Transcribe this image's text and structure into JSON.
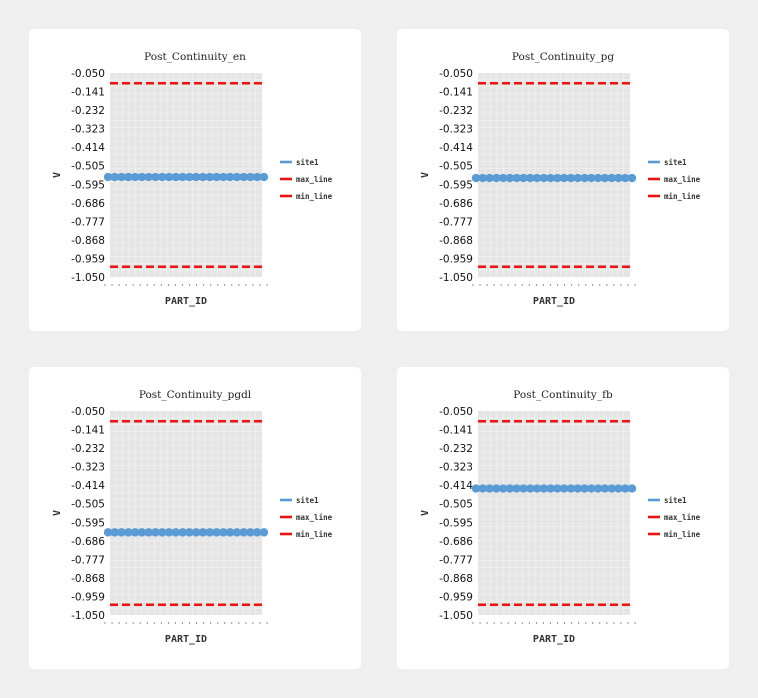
{
  "colors": {
    "page_bg": "#efefef",
    "card_bg": "#ffffff",
    "plot_bg": "#e5e5e5",
    "grid": "#f4f4f4",
    "site1": "#5b9bd5",
    "max_line": "#ee1111",
    "min_line": "#ee1111"
  },
  "chart_data": [
    {
      "type": "line",
      "title": "Post_Continuity_en",
      "xlabel": "PART_ID",
      "ylabel": "V",
      "ylim": [
        -1.05,
        -0.05
      ],
      "y_ticks": [
        "-0.050",
        "-0.141",
        "-0.232",
        "-0.323",
        "-0.414",
        "-0.505",
        "-0.595",
        "-0.686",
        "-0.777",
        "-0.868",
        "-0.959",
        "-1.050"
      ],
      "grid": true,
      "legend_position": "right",
      "series": [
        {
          "name": "site1",
          "values": [
            -0.56,
            -0.56,
            -0.56,
            -0.56,
            -0.56,
            -0.56,
            -0.56,
            -0.56,
            -0.56,
            -0.56,
            -0.56,
            -0.56,
            -0.56,
            -0.56,
            -0.56,
            -0.56,
            -0.56,
            -0.56,
            -0.56,
            -0.56,
            -0.56,
            -0.56,
            -0.56,
            -0.56
          ],
          "style": "point"
        },
        {
          "name": "max_line",
          "values": [
            -0.1,
            -0.1
          ],
          "style": "dashed"
        },
        {
          "name": "min_line",
          "values": [
            -1.0,
            -1.0
          ],
          "style": "dashed"
        }
      ]
    },
    {
      "type": "line",
      "title": "Post_Continuity_pg",
      "xlabel": "PART_ID",
      "ylabel": "V",
      "ylim": [
        -1.05,
        -0.05
      ],
      "y_ticks": [
        "-0.050",
        "-0.141",
        "-0.232",
        "-0.323",
        "-0.414",
        "-0.505",
        "-0.595",
        "-0.686",
        "-0.777",
        "-0.868",
        "-0.959",
        "-1.050"
      ],
      "grid": true,
      "legend_position": "right",
      "series": [
        {
          "name": "site1",
          "values": [
            -0.565,
            -0.565,
            -0.565,
            -0.565,
            -0.565,
            -0.565,
            -0.565,
            -0.565,
            -0.565,
            -0.565,
            -0.565,
            -0.565,
            -0.565,
            -0.565,
            -0.565,
            -0.565,
            -0.565,
            -0.565,
            -0.565,
            -0.565,
            -0.565,
            -0.565,
            -0.565,
            -0.565
          ],
          "style": "point"
        },
        {
          "name": "max_line",
          "values": [
            -0.1,
            -0.1
          ],
          "style": "dashed"
        },
        {
          "name": "min_line",
          "values": [
            -1.0,
            -1.0
          ],
          "style": "dashed"
        }
      ]
    },
    {
      "type": "line",
      "title": "Post_Continuity_pgdl",
      "xlabel": "PART_ID",
      "ylabel": "V",
      "ylim": [
        -1.05,
        -0.05
      ],
      "y_ticks": [
        "-0.050",
        "-0.141",
        "-0.232",
        "-0.323",
        "-0.414",
        "-0.505",
        "-0.595",
        "-0.686",
        "-0.777",
        "-0.868",
        "-0.959",
        "-1.050"
      ],
      "grid": true,
      "legend_position": "right",
      "series": [
        {
          "name": "site1",
          "values": [
            -0.645,
            -0.645,
            -0.645,
            -0.645,
            -0.645,
            -0.645,
            -0.645,
            -0.645,
            -0.645,
            -0.645,
            -0.645,
            -0.645,
            -0.645,
            -0.645,
            -0.645,
            -0.645,
            -0.645,
            -0.645,
            -0.645,
            -0.645,
            -0.645,
            -0.645,
            -0.645,
            -0.645
          ],
          "style": "point"
        },
        {
          "name": "max_line",
          "values": [
            -0.1,
            -0.1
          ],
          "style": "dashed"
        },
        {
          "name": "min_line",
          "values": [
            -1.0,
            -1.0
          ],
          "style": "dashed"
        }
      ]
    },
    {
      "type": "line",
      "title": "Post_Continuity_fb",
      "xlabel": "PART_ID",
      "ylabel": "V",
      "ylim": [
        -1.05,
        -0.05
      ],
      "y_ticks": [
        "-0.050",
        "-0.141",
        "-0.232",
        "-0.323",
        "-0.414",
        "-0.505",
        "-0.595",
        "-0.686",
        "-0.777",
        "-0.868",
        "-0.959",
        "-1.050"
      ],
      "grid": true,
      "legend_position": "right",
      "series": [
        {
          "name": "site1",
          "values": [
            -0.43,
            -0.43,
            -0.43,
            -0.43,
            -0.43,
            -0.43,
            -0.43,
            -0.43,
            -0.43,
            -0.43,
            -0.43,
            -0.43,
            -0.43,
            -0.43,
            -0.43,
            -0.43,
            -0.43,
            -0.43,
            -0.43,
            -0.43,
            -0.43,
            -0.43,
            -0.43,
            -0.43
          ],
          "style": "point"
        },
        {
          "name": "max_line",
          "values": [
            -0.1,
            -0.1
          ],
          "style": "dashed"
        },
        {
          "name": "min_line",
          "values": [
            -1.0,
            -1.0
          ],
          "style": "dashed"
        }
      ]
    }
  ]
}
